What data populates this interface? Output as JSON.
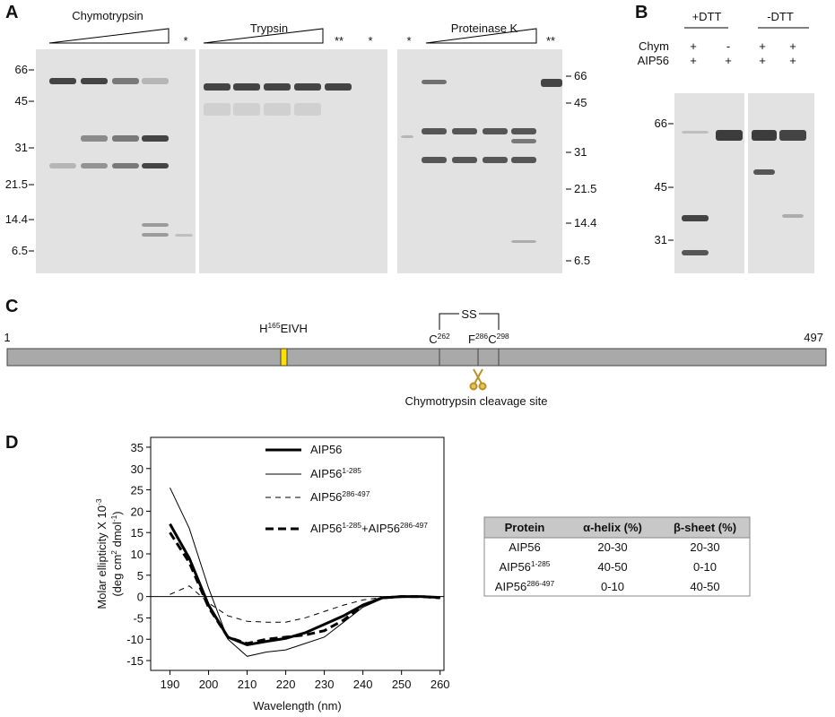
{
  "panel_a": {
    "label": "A",
    "gels": [
      {
        "enzyme": "Chymotrypsin"
      },
      {
        "enzyme": "Trypsin"
      },
      {
        "enzyme": "Proteinase K"
      }
    ],
    "controls": [
      "*",
      "**",
      "*",
      "*",
      "**"
    ],
    "markers_left": [
      "66",
      "45",
      "31",
      "21.5",
      "14.4",
      "6.5"
    ],
    "markers_right": [
      "66",
      "45",
      "31",
      "21.5",
      "14.4",
      "6.5"
    ]
  },
  "panel_b": {
    "label": "B",
    "conditions": [
      "+DTT",
      "-DTT"
    ],
    "rows": [
      {
        "name": "Chym",
        "lanes": [
          "+",
          "-",
          "+",
          "+"
        ]
      },
      {
        "name": "AIP56",
        "lanes": [
          "+",
          "+",
          "+",
          "+"
        ]
      }
    ],
    "markers": [
      "66",
      "45",
      "31"
    ]
  },
  "panel_c": {
    "label": "C",
    "start": "1",
    "end": "497",
    "motif": [
      {
        "text": "H"
      },
      {
        "text": "165",
        "sup": true
      },
      {
        "text": "EIVH"
      }
    ],
    "disulfide": "SS",
    "sites": [
      [
        {
          "text": "C"
        },
        {
          "text": "262",
          "sup": true
        }
      ],
      [
        {
          "text": "F"
        },
        {
          "text": "286",
          "sup": true
        }
      ],
      [
        {
          "text": "C"
        },
        {
          "text": "298",
          "sup": true
        }
      ]
    ],
    "cleavage": "Chymotrypsin cleavage site"
  },
  "panel_d": {
    "label": "D",
    "table": {
      "header": [
        "Protein",
        "α-helix (%)",
        "β-sheet (%)"
      ],
      "rows": [
        [
          [
            {
              "text": "AIP56"
            }
          ],
          "20-30",
          "20-30"
        ],
        [
          [
            {
              "text": "AIP56"
            },
            {
              "text": "1-285",
              "sup": true
            }
          ],
          "40-50",
          "0-10"
        ],
        [
          [
            {
              "text": "AIP56"
            },
            {
              "text": "286-497",
              "sup": true
            }
          ],
          "0-10",
          "40-50"
        ]
      ]
    }
  },
  "chart_data": {
    "type": "line",
    "xlabel": "Wavelength (nm)",
    "ylabel": [
      [
        {
          "text": "Molar ellipticity X 10"
        },
        {
          "text": "-3",
          "sup": true
        }
      ],
      [
        {
          "text": "(deg cm"
        },
        {
          "text": "2",
          "sup": true
        },
        {
          "text": " dmol"
        },
        {
          "text": "-1",
          "sup": true
        },
        {
          "text": ")"
        }
      ]
    ],
    "x": [
      190,
      195,
      200,
      205,
      210,
      215,
      220,
      225,
      230,
      235,
      240,
      245,
      250,
      255,
      260
    ],
    "xlim": [
      185,
      261
    ],
    "xticks": [
      190,
      200,
      210,
      220,
      230,
      240,
      250,
      260
    ],
    "ylim": [
      -17.3,
      37.3
    ],
    "yticks": [
      -15,
      -10,
      -5,
      0,
      5,
      10,
      15,
      20,
      25,
      30,
      35
    ],
    "series": [
      {
        "name": [
          {
            "text": "AIP56"
          }
        ],
        "color": "#000000",
        "line_width": 3,
        "dashed": false,
        "values": [
          17,
          9,
          -2,
          -9.5,
          -11.3,
          -10.5,
          -9.8,
          -8.5,
          -6.5,
          -4.5,
          -2,
          -0.3,
          0,
          0,
          -0.2
        ]
      },
      {
        "name": [
          {
            "text": "AIP56"
          },
          {
            "text": "1-285",
            "sup": true
          }
        ],
        "color": "#000000",
        "line_width": 1,
        "dashed": false,
        "values": [
          25.5,
          16,
          2,
          -10,
          -14,
          -13,
          -12.5,
          -11,
          -9.5,
          -6,
          -2.5,
          -0.5,
          0,
          0,
          -0.3
        ]
      },
      {
        "name": [
          {
            "text": "AIP56"
          },
          {
            "text": "286-497",
            "sup": true
          }
        ],
        "color": "#000000",
        "line_width": 1,
        "dashed": true,
        "values": [
          0.5,
          2.5,
          -1.5,
          -4.5,
          -5.8,
          -6,
          -6,
          -5,
          -3.5,
          -2,
          -0.8,
          -0.2,
          0,
          0,
          -0.2
        ]
      },
      {
        "name": [
          {
            "text": "AIP56"
          },
          {
            "text": "1-285",
            "sup": true
          },
          {
            "text": "+AIP56"
          },
          {
            "text": "286-497",
            "sup": true
          }
        ],
        "color": "#000000",
        "line_width": 3,
        "dashed": true,
        "values": [
          15,
          8,
          -2.5,
          -9.5,
          -11,
          -10,
          -9.5,
          -9,
          -8,
          -5.5,
          -2,
          -0.3,
          0,
          0,
          -0.3
        ]
      }
    ]
  }
}
